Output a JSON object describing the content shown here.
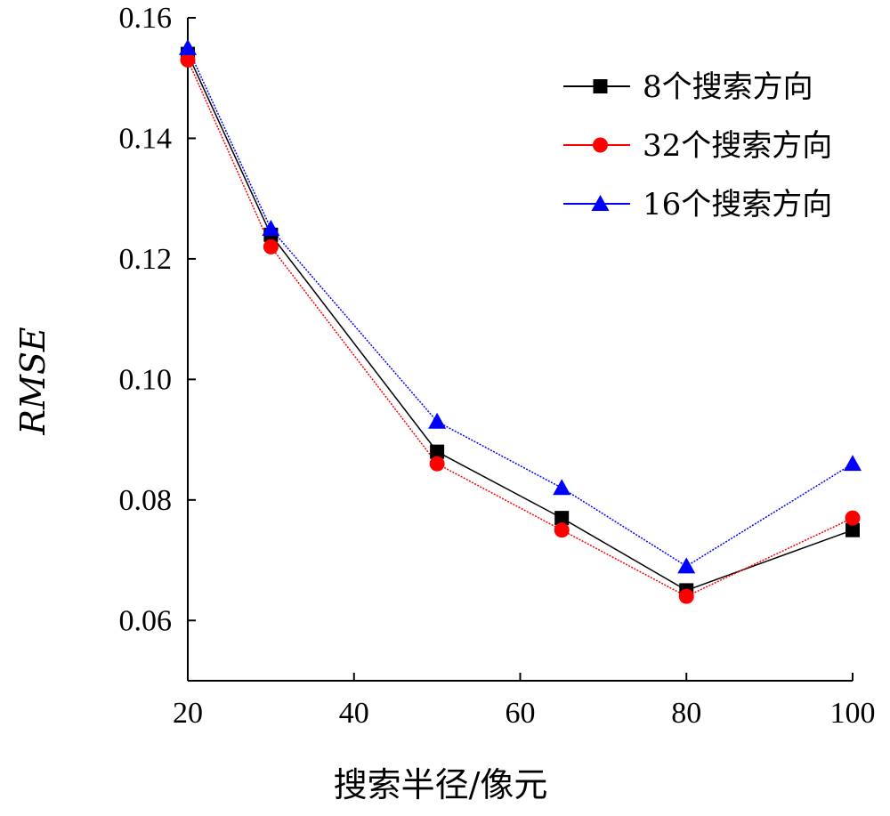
{
  "chart_data": {
    "type": "line",
    "xlabel": "搜索半径/像元",
    "ylabel": "RMSE",
    "xlim": [
      20,
      100
    ],
    "ylim": [
      0.05,
      0.16
    ],
    "x_ticks": [
      20,
      40,
      60,
      80,
      100
    ],
    "y_ticks": [
      0.06,
      0.08,
      0.1,
      0.12,
      0.14,
      0.16
    ],
    "y_tick_labels": [
      "0.06",
      "0.08",
      "0.10",
      "0.12",
      "0.14",
      "0.16"
    ],
    "x": [
      20,
      30,
      50,
      65,
      80,
      100
    ],
    "grid": false,
    "legend_position": "top-right",
    "series": [
      {
        "name": "8个搜索方向",
        "values": [
          0.154,
          0.124,
          0.088,
          0.077,
          0.065,
          0.075
        ],
        "color": "#000000",
        "marker": "square"
      },
      {
        "name": "32个搜索方向",
        "values": [
          0.153,
          0.122,
          0.086,
          0.075,
          0.064,
          0.077
        ],
        "color": "#ff0000",
        "marker": "circle"
      },
      {
        "name": "16个搜索方向",
        "values": [
          0.155,
          0.125,
          0.093,
          0.082,
          0.069,
          0.086
        ],
        "color": "#0000ff",
        "marker": "triangle"
      }
    ]
  }
}
